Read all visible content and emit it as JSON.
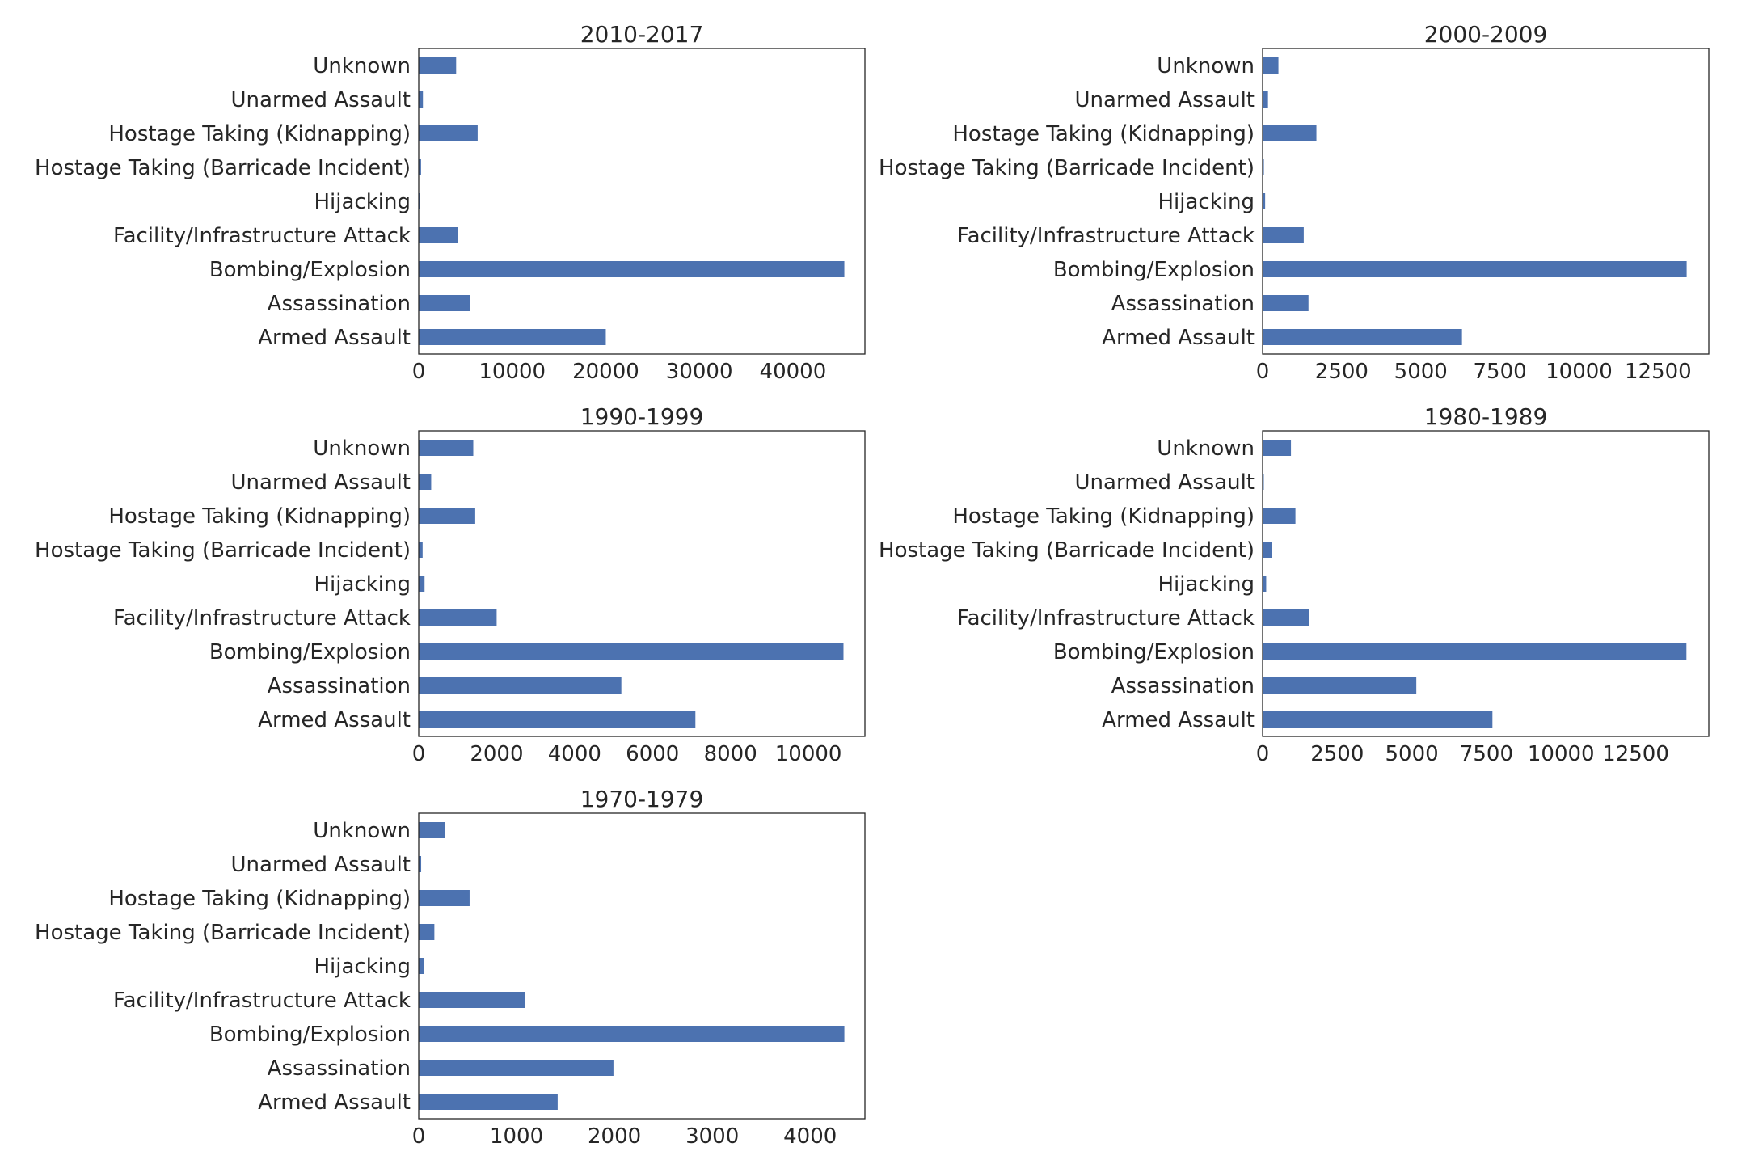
{
  "bar_color": "#4c72b0",
  "chart_data": [
    {
      "type": "bar",
      "orientation": "horizontal",
      "title": "2010-2017",
      "categories": [
        "Armed Assault",
        "Assassination",
        "Bombing/Explosion",
        "Facility/Infrastructure Attack",
        "Hijacking",
        "Hostage Taking (Barricade Incident)",
        "Hostage Taking (Kidnapping)",
        "Unarmed Assault",
        "Unknown"
      ],
      "values": [
        20000,
        5500,
        45500,
        4200,
        150,
        250,
        6300,
        450,
        4000
      ],
      "xlim": [
        0,
        47700
      ],
      "xticks": [
        0,
        10000,
        20000,
        30000,
        40000
      ],
      "xlabel": "",
      "ylabel": "",
      "grid": false
    },
    {
      "type": "bar",
      "orientation": "horizontal",
      "title": "2000-2009",
      "categories": [
        "Armed Assault",
        "Assassination",
        "Bombing/Explosion",
        "Facility/Infrastructure Attack",
        "Hijacking",
        "Hostage Taking (Barricade Incident)",
        "Hostage Taking (Kidnapping)",
        "Unarmed Assault",
        "Unknown"
      ],
      "values": [
        6300,
        1450,
        13400,
        1300,
        80,
        40,
        1700,
        170,
        500
      ],
      "xlim": [
        0,
        14100
      ],
      "xticks": [
        0,
        2500,
        5000,
        7500,
        10000,
        12500
      ],
      "xlabel": "",
      "ylabel": "",
      "grid": false
    },
    {
      "type": "bar",
      "orientation": "horizontal",
      "title": "1990-1999",
      "categories": [
        "Armed Assault",
        "Assassination",
        "Bombing/Explosion",
        "Facility/Infrastructure Attack",
        "Hijacking",
        "Hostage Taking (Barricade Incident)",
        "Hostage Taking (Kidnapping)",
        "Unarmed Assault",
        "Unknown"
      ],
      "values": [
        7100,
        5200,
        10900,
        2000,
        150,
        100,
        1450,
        320,
        1400
      ],
      "xlim": [
        0,
        11450
      ],
      "xticks": [
        0,
        2000,
        4000,
        6000,
        8000,
        10000
      ],
      "xlabel": "",
      "ylabel": "",
      "grid": false
    },
    {
      "type": "bar",
      "orientation": "horizontal",
      "title": "1980-1989",
      "categories": [
        "Armed Assault",
        "Assassination",
        "Bombing/Explosion",
        "Facility/Infrastructure Attack",
        "Hijacking",
        "Hostage Taking (Barricade Incident)",
        "Hostage Taking (Kidnapping)",
        "Unarmed Assault",
        "Unknown"
      ],
      "values": [
        7700,
        5150,
        14200,
        1550,
        120,
        300,
        1100,
        40,
        950
      ],
      "xlim": [
        0,
        14950
      ],
      "xticks": [
        0,
        2500,
        5000,
        7500,
        10000,
        12500
      ],
      "xlabel": "",
      "ylabel": "",
      "grid": false
    },
    {
      "type": "bar",
      "orientation": "horizontal",
      "title": "1970-1979",
      "categories": [
        "Armed Assault",
        "Assassination",
        "Bombing/Explosion",
        "Facility/Infrastructure Attack",
        "Hijacking",
        "Hostage Taking (Barricade Incident)",
        "Hostage Taking (Kidnapping)",
        "Unarmed Assault",
        "Unknown"
      ],
      "values": [
        1420,
        1990,
        4350,
        1090,
        50,
        160,
        520,
        25,
        270
      ],
      "xlim": [
        0,
        4560
      ],
      "xticks": [
        0,
        1000,
        2000,
        3000,
        4000
      ],
      "xlabel": "",
      "ylabel": "",
      "grid": false
    }
  ]
}
